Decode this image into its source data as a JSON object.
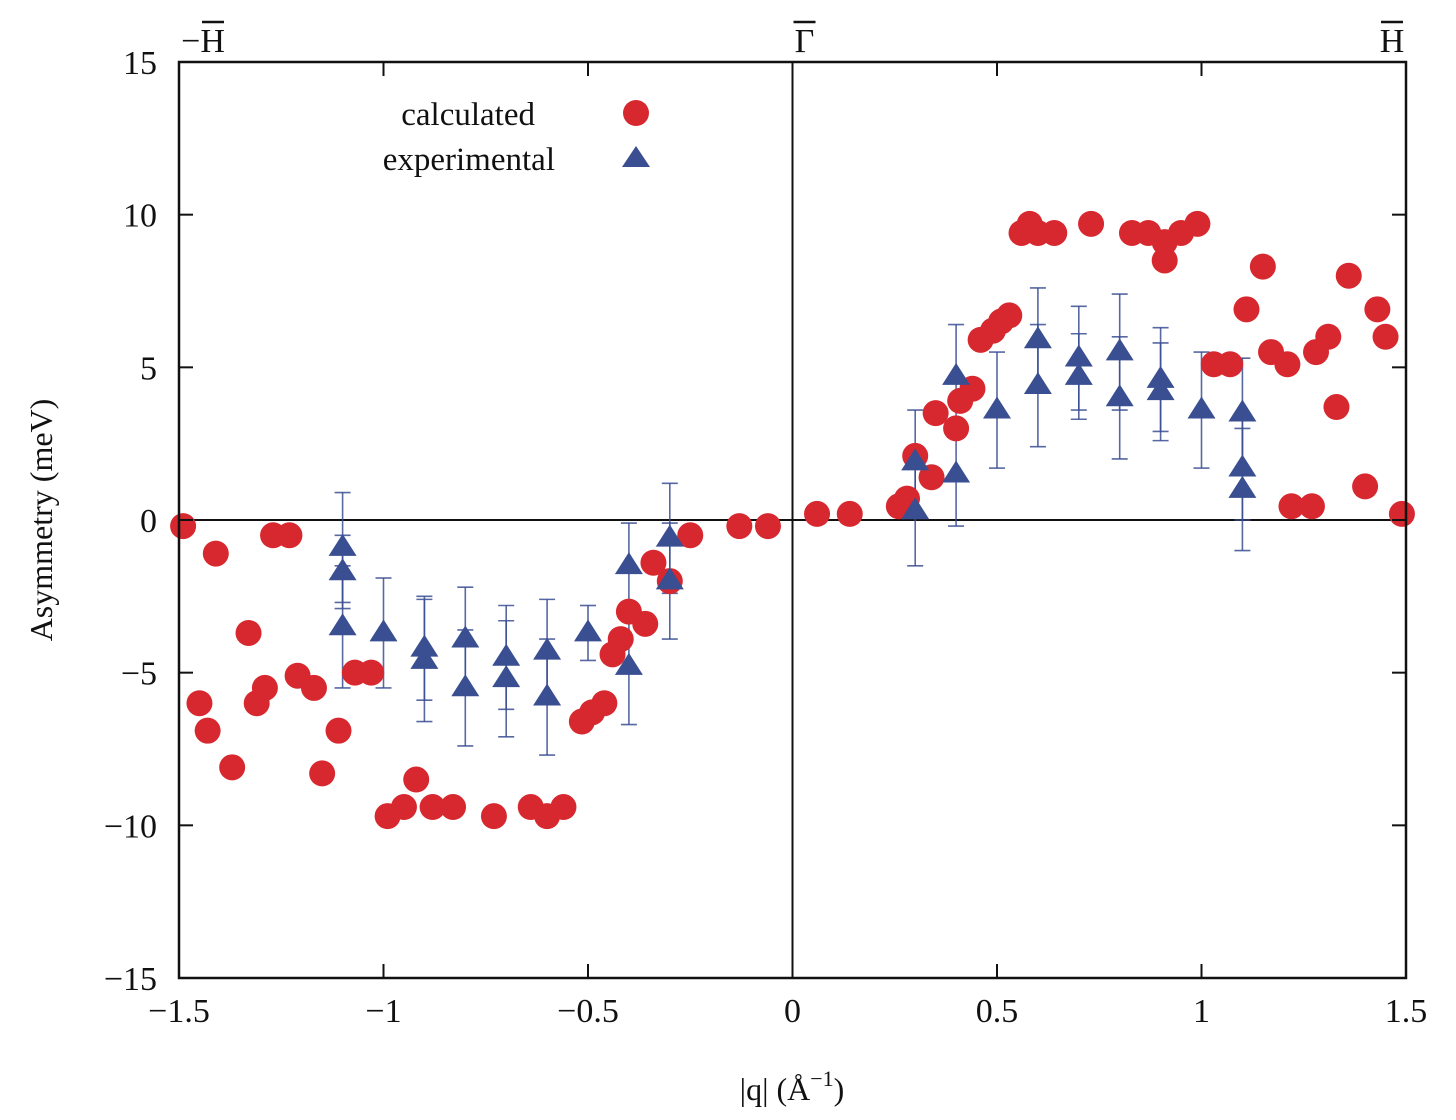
{
  "chart_data": {
    "type": "scatter",
    "title": "",
    "xlabel": "|q| (Å⁻¹)",
    "xlabel_parts": {
      "base": "|q| (Å",
      "sup": "−1",
      "close": ")"
    },
    "ylabel": "Asymmetry (meV)",
    "xlim": [
      -1.5,
      1.5
    ],
    "ylim": [
      -15,
      15
    ],
    "xticks": [
      -1.5,
      -1,
      -0.5,
      0,
      0.5,
      1,
      1.5
    ],
    "xtick_labels": [
      "−1.5",
      "−1",
      "−0.5",
      "0",
      "0.5",
      "1",
      "1.5"
    ],
    "yticks": [
      -15,
      -10,
      -5,
      0,
      5,
      10,
      15
    ],
    "ytick_labels": [
      "−15",
      "−10",
      "−5",
      "0",
      "5",
      "10",
      "15"
    ],
    "grid": false,
    "zero_lines": true,
    "top_labels": [
      {
        "x": -1.5,
        "prefix": "−",
        "symbol": "H"
      },
      {
        "x": 0,
        "prefix": "",
        "symbol": "Γ"
      },
      {
        "x": 1.5,
        "prefix": "",
        "symbol": "H"
      }
    ],
    "legend": {
      "position": "top-left",
      "entries": [
        "calculated",
        "experimental"
      ]
    },
    "series": [
      {
        "name": "calculated",
        "marker": "circle",
        "color": "#d7282f",
        "x": [
          -1.49,
          -1.45,
          -1.43,
          -1.41,
          -1.37,
          -1.33,
          -1.31,
          -1.29,
          -1.27,
          -1.23,
          -1.21,
          -1.17,
          -1.15,
          -1.11,
          -1.07,
          -1.03,
          -0.99,
          -0.95,
          -0.92,
          -0.88,
          -0.83,
          -0.73,
          -0.64,
          -0.6,
          -0.56,
          -0.515,
          -0.49,
          -0.46,
          -0.44,
          -0.42,
          -0.4,
          -0.36,
          -0.34,
          -0.3,
          -0.25,
          -0.13,
          -0.06,
          0.06,
          0.14,
          0.26,
          0.28,
          0.3,
          0.34,
          0.35,
          0.4,
          0.41,
          0.44,
          0.46,
          0.49,
          0.51,
          0.53,
          0.56,
          0.58,
          0.6,
          0.64,
          0.73,
          0.83,
          0.87,
          0.91,
          0.91,
          0.95,
          0.99,
          1.03,
          1.07,
          1.11,
          1.15,
          1.17,
          1.21,
          1.22,
          1.27,
          1.28,
          1.31,
          1.33,
          1.36,
          1.4,
          1.43,
          1.45,
          1.49
        ],
        "y": [
          -0.2,
          -6.0,
          -6.9,
          -1.1,
          -8.1,
          -3.7,
          -6.0,
          -5.5,
          -0.5,
          -0.5,
          -5.1,
          -5.5,
          -8.3,
          -6.9,
          -5.0,
          -5.0,
          -9.7,
          -9.4,
          -8.5,
          -9.4,
          -9.4,
          -9.7,
          -9.4,
          -9.7,
          -9.4,
          -6.6,
          -6.3,
          -6.0,
          -4.4,
          -3.9,
          -3.0,
          -3.4,
          -1.4,
          -2.0,
          -0.5,
          -0.2,
          -0.2,
          0.2,
          0.2,
          0.45,
          0.7,
          2.1,
          1.4,
          3.5,
          3.0,
          3.9,
          4.3,
          5.9,
          6.2,
          6.5,
          6.7,
          9.4,
          9.7,
          9.4,
          9.4,
          9.7,
          9.4,
          9.4,
          8.5,
          9.1,
          9.4,
          9.7,
          5.1,
          5.1,
          6.9,
          8.3,
          5.5,
          5.1,
          0.45,
          0.45,
          5.5,
          6.0,
          3.7,
          8.0,
          1.1,
          6.9,
          6.0,
          0.2
        ]
      },
      {
        "name": "experimental",
        "marker": "triangle",
        "color": "#3a4e92",
        "x": [
          -1.1,
          -1.1,
          -1.1,
          -1.0,
          -0.9,
          -0.9,
          -0.8,
          -0.8,
          -0.7,
          -0.7,
          -0.6,
          -0.6,
          -0.5,
          -0.4,
          -0.4,
          -0.3,
          -0.3,
          0.3,
          0.3,
          0.4,
          0.4,
          0.5,
          0.6,
          0.6,
          0.7,
          0.7,
          0.8,
          0.8,
          0.9,
          0.9,
          1.0,
          1.1,
          1.1,
          1.1
        ],
        "y": [
          -0.9,
          -1.7,
          -3.5,
          -3.7,
          -4.2,
          -4.6,
          -3.9,
          -5.5,
          -4.5,
          -5.2,
          -4.3,
          -5.8,
          -3.7,
          -1.5,
          -4.8,
          -0.6,
          -2.0,
          0.3,
          1.9,
          1.5,
          4.7,
          3.6,
          5.9,
          4.4,
          5.3,
          4.7,
          5.5,
          4.0,
          4.6,
          4.2,
          3.6,
          3.5,
          1.7,
          1.0
        ],
        "yerr": [
          1.8,
          1.2,
          2.0,
          1.8,
          1.7,
          2.0,
          1.7,
          1.9,
          1.7,
          1.9,
          1.7,
          1.9,
          0.9,
          1.4,
          1.9,
          1.8,
          1.9,
          1.8,
          1.7,
          1.7,
          1.7,
          1.9,
          1.7,
          2.0,
          1.7,
          1.4,
          1.9,
          2.0,
          1.7,
          1.6,
          1.9,
          1.8,
          1.7,
          2.0
        ]
      }
    ]
  }
}
